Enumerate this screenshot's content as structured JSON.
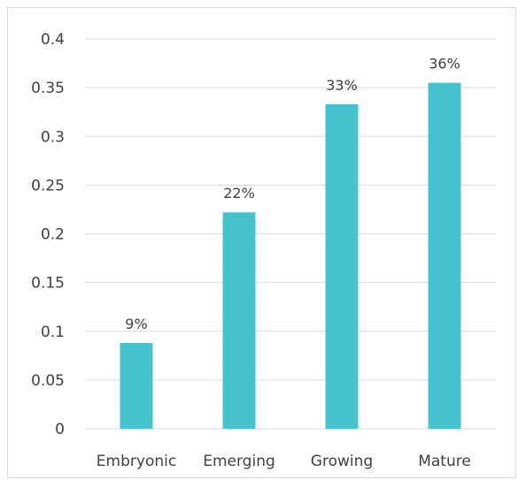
{
  "chart_data": {
    "type": "bar",
    "title": "",
    "xlabel": "",
    "ylabel": "",
    "categories": [
      "Embryonic",
      "Emerging",
      "Growing",
      "Mature"
    ],
    "values": [
      0.088,
      0.222,
      0.333,
      0.355
    ],
    "data_labels": [
      "9%",
      "22%",
      "33%",
      "36%"
    ],
    "ylim": [
      0,
      0.4
    ],
    "yticks": [
      "0",
      "0.05",
      "0.1",
      "0.15",
      "0.2",
      "0.25",
      "0.3",
      "0.35",
      "0.4"
    ],
    "ytick_values": [
      0,
      0.05,
      0.1,
      0.15,
      0.2,
      0.25,
      0.3,
      0.35,
      0.4
    ],
    "grid": true,
    "legend": "none",
    "colors": {
      "bar": "#45c4cf",
      "grid": "#d9d9d9",
      "text": "#404040"
    }
  }
}
